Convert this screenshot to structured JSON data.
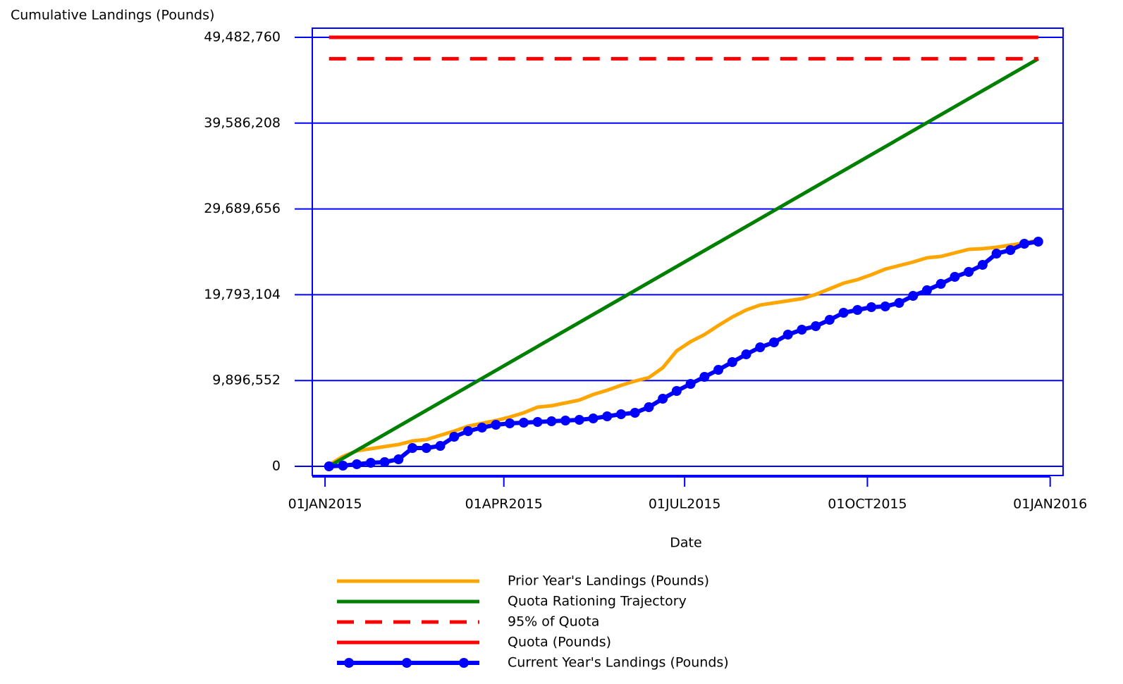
{
  "chart_data": {
    "type": "line",
    "ylabel": "Cumulative Landings (Pounds)",
    "xlabel": "Date",
    "xlim": [
      "2014-12-25T14:00:00",
      "2016-01-07T12:00:00"
    ],
    "xticks": [
      {
        "value": "2015-01-01",
        "label": "01JAN2015"
      },
      {
        "value": "2015-04-01",
        "label": "01APR2015"
      },
      {
        "value": "2015-07-01",
        "label": "01JUL2015"
      },
      {
        "value": "2015-10-01",
        "label": "01OCT2015"
      },
      {
        "value": "2016-01-01",
        "label": "01JAN2016"
      }
    ],
    "ylim": [
      -1056000,
      50539000
    ],
    "yticks": [
      0,
      {
        "value": 9896552,
        "label": "9,896,552"
      },
      {
        "value": 19793104,
        "label": "19,793,104"
      },
      {
        "value": 29689656,
        "label": "29,689,656"
      },
      {
        "value": 39586208,
        "label": "39,586,208"
      },
      {
        "value": 49482760,
        "label": "49,482,760"
      }
    ],
    "grid": true,
    "grid_color": "#0000ff",
    "legend": "bottom",
    "series": [
      {
        "name": "Prior Year's Landings (Pounds)",
        "color": "#ffa500",
        "dash": false,
        "marker": false,
        "x": [
          "2015-01-03",
          "2015-01-10",
          "2015-01-17",
          "2015-01-24",
          "2015-01-31",
          "2015-02-07",
          "2015-02-14",
          "2015-02-21",
          "2015-02-28",
          "2015-03-07",
          "2015-03-14",
          "2015-03-21",
          "2015-03-28",
          "2015-04-04",
          "2015-04-11",
          "2015-04-18",
          "2015-04-25",
          "2015-05-02",
          "2015-05-09",
          "2015-05-16",
          "2015-05-23",
          "2015-05-30",
          "2015-06-06",
          "2015-06-13",
          "2015-06-20",
          "2015-06-27",
          "2015-07-04",
          "2015-07-11",
          "2015-07-18",
          "2015-07-25",
          "2015-08-01",
          "2015-08-08",
          "2015-08-15",
          "2015-08-22",
          "2015-08-29",
          "2015-09-05",
          "2015-09-12",
          "2015-09-19",
          "2015-09-26",
          "2015-10-03",
          "2015-10-10",
          "2015-10-17",
          "2015-10-24",
          "2015-10-31",
          "2015-11-07",
          "2015-11-14",
          "2015-11-21",
          "2015-11-28",
          "2015-12-05",
          "2015-12-12",
          "2015-12-19",
          "2015-12-26"
        ],
        "values": [
          163000,
          1138000,
          1788000,
          2031000,
          2275000,
          2519000,
          2925000,
          3088000,
          3575000,
          4063000,
          4631000,
          4956000,
          5281000,
          5688000,
          6175000,
          6825000,
          6988000,
          7313000,
          7638000,
          8288000,
          8775000,
          9344000,
          9831000,
          10238000,
          11375000,
          13325000,
          14382000,
          15194000,
          16250000,
          17225000,
          18038000,
          18607000,
          18850000,
          19094000,
          19338000,
          19825000,
          20475000,
          21125000,
          21532000,
          22101000,
          22751000,
          23157000,
          23563000,
          24051000,
          24213000,
          24620000,
          25026000,
          25107000,
          25270000,
          25513000,
          25757000,
          26082000
        ]
      },
      {
        "name": "Quota Rationing Trajectory",
        "color": "#008000",
        "dash": false,
        "marker": false,
        "x": [
          "2015-01-03",
          "2015-12-26"
        ],
        "values": [
          0,
          47008622
        ]
      },
      {
        "name": "95% of Quota",
        "color": "#ff0000",
        "dash": true,
        "marker": false,
        "x": [
          "2015-01-03",
          "2015-12-26"
        ],
        "values": [
          47008622,
          47008622
        ]
      },
      {
        "name": "Quota (Pounds)",
        "color": "#ff0000",
        "dash": false,
        "marker": false,
        "x": [
          "2015-01-03",
          "2015-12-26"
        ],
        "values": [
          49482760,
          49482760
        ]
      },
      {
        "name": "Current Year's Landings (Pounds)",
        "color": "#0000ff",
        "dash": false,
        "marker": true,
        "x": [
          "2015-01-03",
          "2015-01-10",
          "2015-01-17",
          "2015-01-24",
          "2015-01-31",
          "2015-02-07",
          "2015-02-14",
          "2015-02-21",
          "2015-02-28",
          "2015-03-07",
          "2015-03-14",
          "2015-03-21",
          "2015-03-28",
          "2015-04-04",
          "2015-04-11",
          "2015-04-18",
          "2015-04-25",
          "2015-05-02",
          "2015-05-09",
          "2015-05-16",
          "2015-05-23",
          "2015-05-30",
          "2015-06-06",
          "2015-06-13",
          "2015-06-20",
          "2015-06-27",
          "2015-07-04",
          "2015-07-11",
          "2015-07-18",
          "2015-07-25",
          "2015-08-01",
          "2015-08-08",
          "2015-08-15",
          "2015-08-22",
          "2015-08-29",
          "2015-09-05",
          "2015-09-12",
          "2015-09-19",
          "2015-09-26",
          "2015-10-03",
          "2015-10-10",
          "2015-10-17",
          "2015-10-24",
          "2015-10-31",
          "2015-11-07",
          "2015-11-14",
          "2015-11-21",
          "2015-11-28",
          "2015-12-05",
          "2015-12-12",
          "2015-12-19",
          "2015-12-26"
        ],
        "values": [
          0,
          81000,
          244000,
          406000,
          488000,
          813000,
          2113000,
          2113000,
          2356000,
          3413000,
          4063000,
          4469000,
          4794000,
          4957000,
          5038000,
          5119000,
          5200000,
          5281000,
          5363000,
          5525000,
          5769000,
          6012000,
          6175000,
          6825000,
          7800000,
          8694000,
          9507000,
          10319000,
          11132000,
          12025000,
          12919000,
          13732000,
          14300000,
          15194000,
          15763000,
          16169000,
          16900000,
          17713000,
          18038000,
          18363000,
          18444000,
          18850000,
          19663000,
          20313000,
          21044000,
          21857000,
          22426000,
          23238000,
          24538000,
          24944000,
          25675000,
          25919000
        ]
      }
    ]
  }
}
